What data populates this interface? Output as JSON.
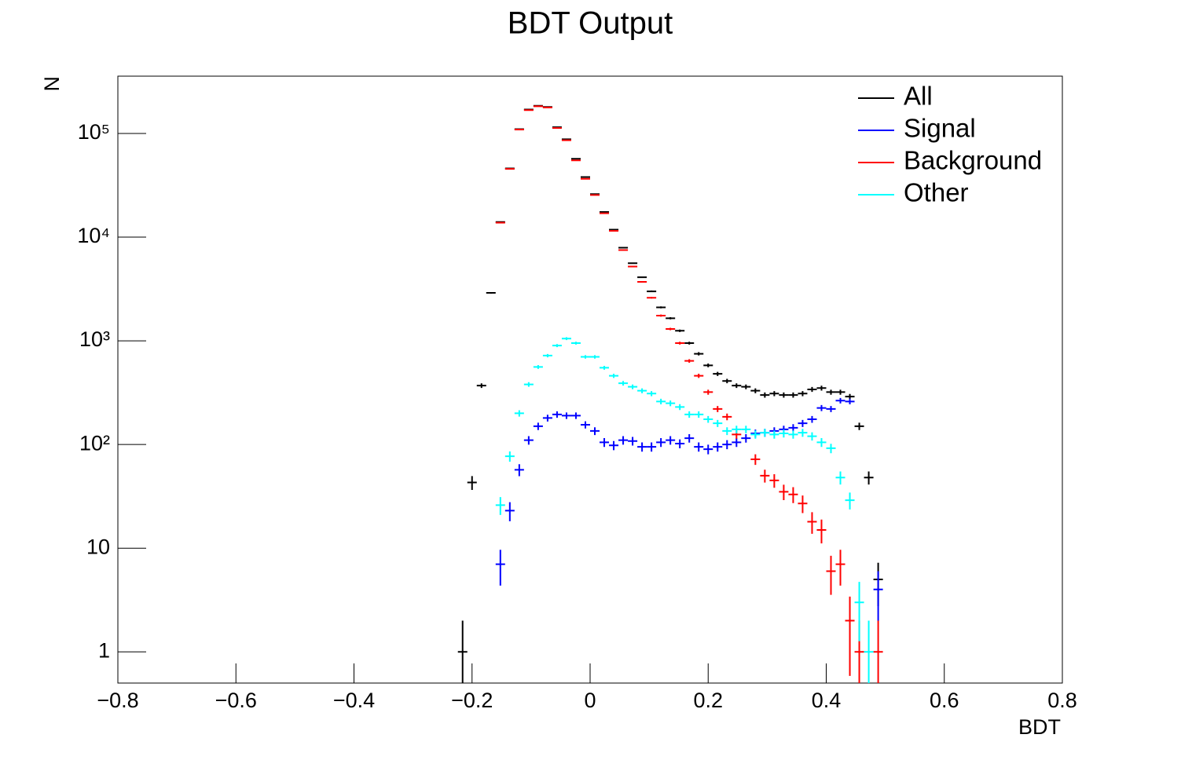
{
  "chart_data": {
    "type": "errorbar",
    "title": "BDT Output",
    "x_label": "BDT",
    "y_label": "N",
    "log_y": true,
    "legend": "upper right",
    "bin_width": 0.016,
    "x": [
      -0.216,
      -0.2,
      -0.184,
      -0.168,
      -0.152,
      -0.136,
      -0.12,
      -0.104,
      -0.088,
      -0.072,
      -0.056,
      -0.04,
      -0.024,
      -0.008,
      0.008,
      0.024,
      0.04,
      0.056,
      0.072,
      0.088,
      0.104,
      0.12,
      0.136,
      0.152,
      0.168,
      0.184,
      0.2,
      0.216,
      0.232,
      0.248,
      0.264,
      0.28,
      0.296,
      0.312,
      0.328,
      0.344,
      0.36,
      0.376,
      0.392,
      0.408,
      0.424,
      0.44,
      0.456,
      0.472,
      0.488
    ],
    "series": [
      {
        "name": "All",
        "color": "#000000",
        "values": [
          1,
          43,
          370,
          2900,
          14000,
          46000,
          110000,
          170000,
          185000,
          180000,
          115000,
          88000,
          57000,
          38000,
          26000,
          17500,
          11800,
          7900,
          5600,
          4100,
          3000,
          2100,
          1650,
          1250,
          950,
          750,
          580,
          480,
          410,
          370,
          360,
          330,
          300,
          310,
          300,
          300,
          310,
          340,
          350,
          320,
          320,
          290,
          150,
          48,
          5
        ]
      },
      {
        "name": "Signal",
        "color": "#0000ff",
        "values": [
          null,
          null,
          null,
          null,
          7,
          23,
          57,
          110,
          150,
          180,
          195,
          190,
          190,
          155,
          135,
          105,
          98,
          110,
          108,
          95,
          95,
          105,
          110,
          102,
          115,
          95,
          90,
          95,
          100,
          105,
          115,
          128,
          130,
          135,
          140,
          145,
          160,
          175,
          225,
          220,
          265,
          260,
          null,
          null,
          4
        ]
      },
      {
        "name": "Background",
        "color": "#ff0000",
        "values": [
          null,
          null,
          null,
          null,
          13800,
          45500,
          109000,
          168000,
          183000,
          178000,
          113000,
          86000,
          55000,
          36500,
          25500,
          17000,
          11500,
          7500,
          5200,
          3700,
          2600,
          1750,
          1300,
          950,
          640,
          460,
          320,
          220,
          185,
          125,
          null,
          72,
          50,
          45,
          35,
          33,
          27,
          18,
          15,
          6,
          7,
          2,
          1,
          null,
          1
        ]
      },
      {
        "name": "Other",
        "color": "#00ffff",
        "values": [
          null,
          null,
          null,
          null,
          26,
          77,
          200,
          380,
          560,
          720,
          900,
          1050,
          950,
          700,
          700,
          550,
          460,
          390,
          360,
          330,
          310,
          260,
          250,
          230,
          195,
          195,
          175,
          160,
          135,
          140,
          140,
          125,
          130,
          125,
          128,
          125,
          130,
          120,
          105,
          92,
          48,
          29,
          3,
          1,
          null
        ]
      }
    ],
    "xlim": [
      -0.8,
      0.8
    ],
    "xticks": [
      {
        "value": -0.8,
        "label": "−0.8"
      },
      {
        "value": -0.6,
        "label": "−0.6"
      },
      {
        "value": -0.4,
        "label": "−0.4"
      },
      {
        "value": -0.2,
        "label": "−0.2"
      },
      0,
      0.2,
      0.4,
      0.6,
      0.8
    ],
    "ylim": [
      0.5,
      357000
    ],
    "yticks": [
      1,
      10,
      {
        "value": 100,
        "label": "10²"
      },
      {
        "value": 1000,
        "label": "10³"
      },
      {
        "value": 10000,
        "label": "10⁴"
      },
      {
        "value": 100000,
        "label": "10⁵"
      }
    ]
  }
}
